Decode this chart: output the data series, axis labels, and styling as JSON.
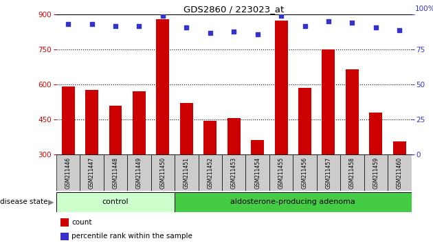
{
  "title": "GDS2860 / 223023_at",
  "samples": [
    "GSM211446",
    "GSM211447",
    "GSM211448",
    "GSM211449",
    "GSM211450",
    "GSM211451",
    "GSM211452",
    "GSM211453",
    "GSM211454",
    "GSM211455",
    "GSM211456",
    "GSM211457",
    "GSM211458",
    "GSM211459",
    "GSM211460"
  ],
  "counts": [
    590,
    575,
    510,
    570,
    880,
    520,
    445,
    455,
    360,
    875,
    585,
    750,
    665,
    480,
    355
  ],
  "percentiles": [
    93,
    93,
    92,
    92,
    99,
    91,
    87,
    88,
    86,
    99,
    92,
    95,
    94,
    91,
    89
  ],
  "ylim_left": [
    300,
    900
  ],
  "ylim_right": [
    0,
    100
  ],
  "yticks_left": [
    300,
    450,
    600,
    750,
    900
  ],
  "yticks_right": [
    0,
    25,
    50,
    75,
    100
  ],
  "grid_values": [
    450,
    600,
    750
  ],
  "bar_color": "#cc0000",
  "dot_color": "#3333cc",
  "bar_width": 0.55,
  "control_count": 5,
  "adenoma_count": 10,
  "control_label": "control",
  "adenoma_label": "aldosterone-producing adenoma",
  "disease_label": "disease state",
  "legend_count": "count",
  "legend_percentile": "percentile rank within the sample",
  "control_color": "#ccffcc",
  "adenoma_color": "#44cc44",
  "xlabel_area_color": "#cccccc",
  "bg_color": "#ffffff"
}
